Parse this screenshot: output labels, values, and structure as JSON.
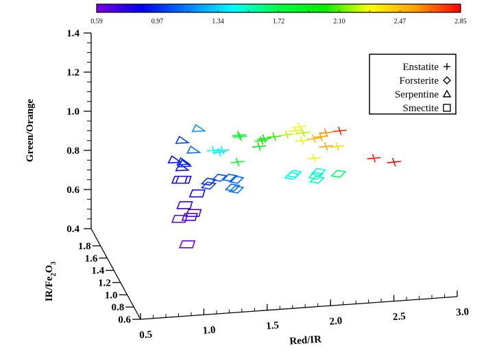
{
  "chart_data": {
    "type": "scatter",
    "projection": "3d",
    "xlabel": "Red/IR",
    "ylabel": "Green/Orange",
    "zlabel_main": "IR/Fe",
    "zlabel_sub1": "2",
    "zlabel_mid": "O",
    "zlabel_sub2": "3",
    "xlim": [
      0.5,
      3.0
    ],
    "ylim": [
      0.4,
      1.4
    ],
    "zlim": [
      0.6,
      1.8
    ],
    "xticks": [
      "0.5",
      "1.0",
      "1.5",
      "2.0",
      "2.5",
      "3.0"
    ],
    "yticks": [
      "0.4",
      "0.6",
      "0.8",
      "1.0",
      "1.2",
      "1.4"
    ],
    "zticks": [
      "0.6",
      "0.8",
      "1.0",
      "1.2",
      "1.4",
      "1.6",
      "1.8"
    ],
    "colorbar": {
      "range": [
        0.59,
        2.85
      ],
      "ticks": [
        "0.59",
        "0.97",
        "1.34",
        "1.72",
        "2.10",
        "2.47",
        "2.85"
      ],
      "colormap": [
        "#7a00e0",
        "#0000f0",
        "#0080ff",
        "#00ffff",
        "#00ff40",
        "#00ee00",
        "#ffff00",
        "#ffa000",
        "#ff0000"
      ]
    },
    "legend": {
      "placement": "top-right",
      "entries": [
        {
          "label": "Enstatite",
          "symbol": "+"
        },
        {
          "label": "Forsterite",
          "symbol": "◇"
        },
        {
          "label": "Serpentine",
          "symbol": "△"
        },
        {
          "label": "Smectite",
          "symbol": "□"
        }
      ]
    },
    "series": [
      {
        "name": "Enstatite",
        "marker": "cross",
        "points": [
          [
            1.28,
            0.877,
            1.85
          ],
          [
            1.29,
            0.87,
            1.8
          ],
          [
            1.125,
            0.79,
            1.4
          ],
          [
            1.08,
            0.8,
            1.45
          ],
          [
            1.15,
            0.8,
            1.4
          ],
          [
            1.27,
            0.74,
            1.8
          ],
          [
            1.46,
            0.85,
            2.0
          ],
          [
            1.44,
            0.82,
            1.95
          ],
          [
            1.48,
            0.86,
            2.0
          ],
          [
            1.56,
            0.87,
            2.05
          ],
          [
            1.66,
            0.88,
            2.2
          ],
          [
            1.73,
            0.9,
            2.25
          ],
          [
            1.76,
            0.92,
            2.3
          ],
          [
            1.79,
            0.89,
            2.2
          ],
          [
            1.78,
            0.85,
            2.25
          ],
          [
            1.875,
            0.86,
            2.5
          ],
          [
            1.93,
            0.87,
            2.55
          ],
          [
            1.97,
            0.89,
            2.6
          ],
          [
            2.08,
            0.9,
            2.8
          ],
          [
            1.97,
            0.82,
            2.55
          ],
          [
            2.06,
            0.82,
            2.4
          ],
          [
            1.875,
            0.76,
            2.25
          ],
          [
            2.35,
            0.76,
            2.8
          ],
          [
            2.51,
            0.74,
            2.85
          ]
        ]
      },
      {
        "name": "Forsterite",
        "marker": "diamond",
        "points": [
          [
            1.7,
            0.67,
            1.45
          ],
          [
            1.72,
            0.68,
            1.45
          ],
          [
            1.89,
            0.67,
            1.5
          ],
          [
            1.91,
            0.69,
            1.5
          ],
          [
            1.9,
            0.65,
            1.55
          ],
          [
            2.07,
            0.68,
            1.65
          ],
          [
            1.04,
            0.64,
            0.97
          ],
          [
            1.125,
            0.66,
            1.05
          ],
          [
            1.21,
            0.66,
            1.1
          ],
          [
            1.26,
            0.65,
            1.1
          ],
          [
            1.23,
            0.61,
            1.1
          ],
          [
            1.04,
            0.62,
            1.0
          ],
          [
            1.26,
            0.6,
            1.15
          ]
        ]
      },
      {
        "name": "Serpentine",
        "marker": "triangle",
        "points": [
          [
            0.96,
            0.91,
            1.2
          ],
          [
            0.83,
            0.85,
            1.0
          ],
          [
            0.92,
            0.8,
            1.1
          ],
          [
            0.84,
            0.74,
            0.95
          ],
          [
            0.77,
            0.75,
            0.9
          ],
          [
            0.83,
            0.71,
            0.9
          ],
          [
            0.85,
            0.73,
            0.95
          ]
        ]
      },
      {
        "name": "Smectite",
        "marker": "square",
        "points": [
          [
            0.81,
            0.65,
            0.85
          ],
          [
            0.84,
            0.65,
            0.8
          ],
          [
            0.95,
            0.58,
            0.8
          ],
          [
            0.85,
            0.52,
            0.72
          ],
          [
            0.92,
            0.48,
            0.7
          ],
          [
            0.81,
            0.45,
            0.68
          ],
          [
            0.89,
            0.46,
            0.7
          ],
          [
            0.87,
            0.32,
            0.62
          ]
        ]
      }
    ]
  }
}
